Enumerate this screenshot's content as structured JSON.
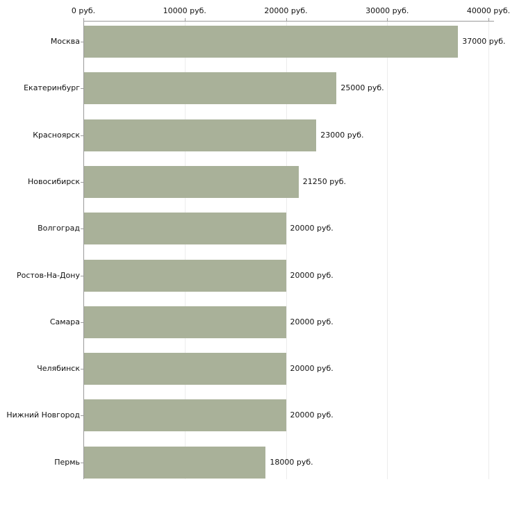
{
  "chart_data": {
    "type": "bar",
    "orientation": "horizontal",
    "title": "",
    "xlabel": "",
    "ylabel": "",
    "categories": [
      "Москва",
      "Екатеринбург",
      "Красноярск",
      "Новосибирск",
      "Волгоград",
      "Ростов-На-Дону",
      "Самара",
      "Челябинск",
      "Нижний Новгород",
      "Пермь"
    ],
    "values": [
      37000,
      25000,
      23000,
      21250,
      20000,
      20000,
      20000,
      20000,
      20000,
      18000
    ],
    "value_labels": [
      "37000 руб.",
      "25000 руб.",
      "23000 руб.",
      "21250 руб.",
      "20000 руб.",
      "20000 руб.",
      "20000 руб.",
      "20000 руб.",
      "20000 руб.",
      "18000 руб."
    ],
    "xlim": [
      0,
      40000
    ],
    "x_ticks": [
      0,
      10000,
      20000,
      30000,
      40000
    ],
    "x_tick_labels": [
      "0 руб.",
      "10000 руб.",
      "20000 руб.",
      "30000 руб.",
      "40000 руб."
    ],
    "legend": null,
    "grid": "faint-vertical",
    "bar_color": "#a9b199",
    "axis_color": "#9a9a9a",
    "text_color": "#111111",
    "background_color": "#ffffff"
  }
}
